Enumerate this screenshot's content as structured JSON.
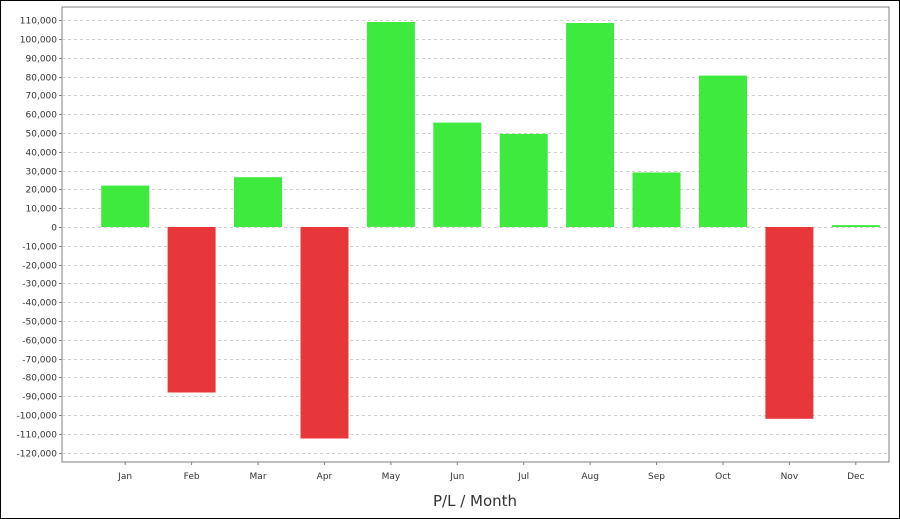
{
  "chart_data": {
    "type": "bar",
    "categories": [
      "Jan",
      "Feb",
      "Mar",
      "Apr",
      "May",
      "Jun",
      "Jul",
      "Aug",
      "Sep",
      "Oct",
      "Nov",
      "Dec"
    ],
    "values": [
      22000,
      -88000,
      26500,
      -112500,
      109000,
      55500,
      49500,
      108500,
      29000,
      80500,
      -102000,
      1000
    ],
    "title": "",
    "xlabel": "P/L / Month",
    "ylabel": "",
    "ylim": [
      -125000,
      117000
    ],
    "yticks": [
      110000,
      100000,
      90000,
      80000,
      70000,
      60000,
      50000,
      40000,
      30000,
      20000,
      10000,
      0,
      -10000,
      -20000,
      -30000,
      -40000,
      -50000,
      -60000,
      -70000,
      -80000,
      -90000,
      -100000,
      -110000,
      -120000
    ],
    "grid": true,
    "colors": {
      "positive": "#3dea3d",
      "negative": "#e8373a",
      "grid": "#d0d0d0",
      "axis": "#808080"
    }
  }
}
